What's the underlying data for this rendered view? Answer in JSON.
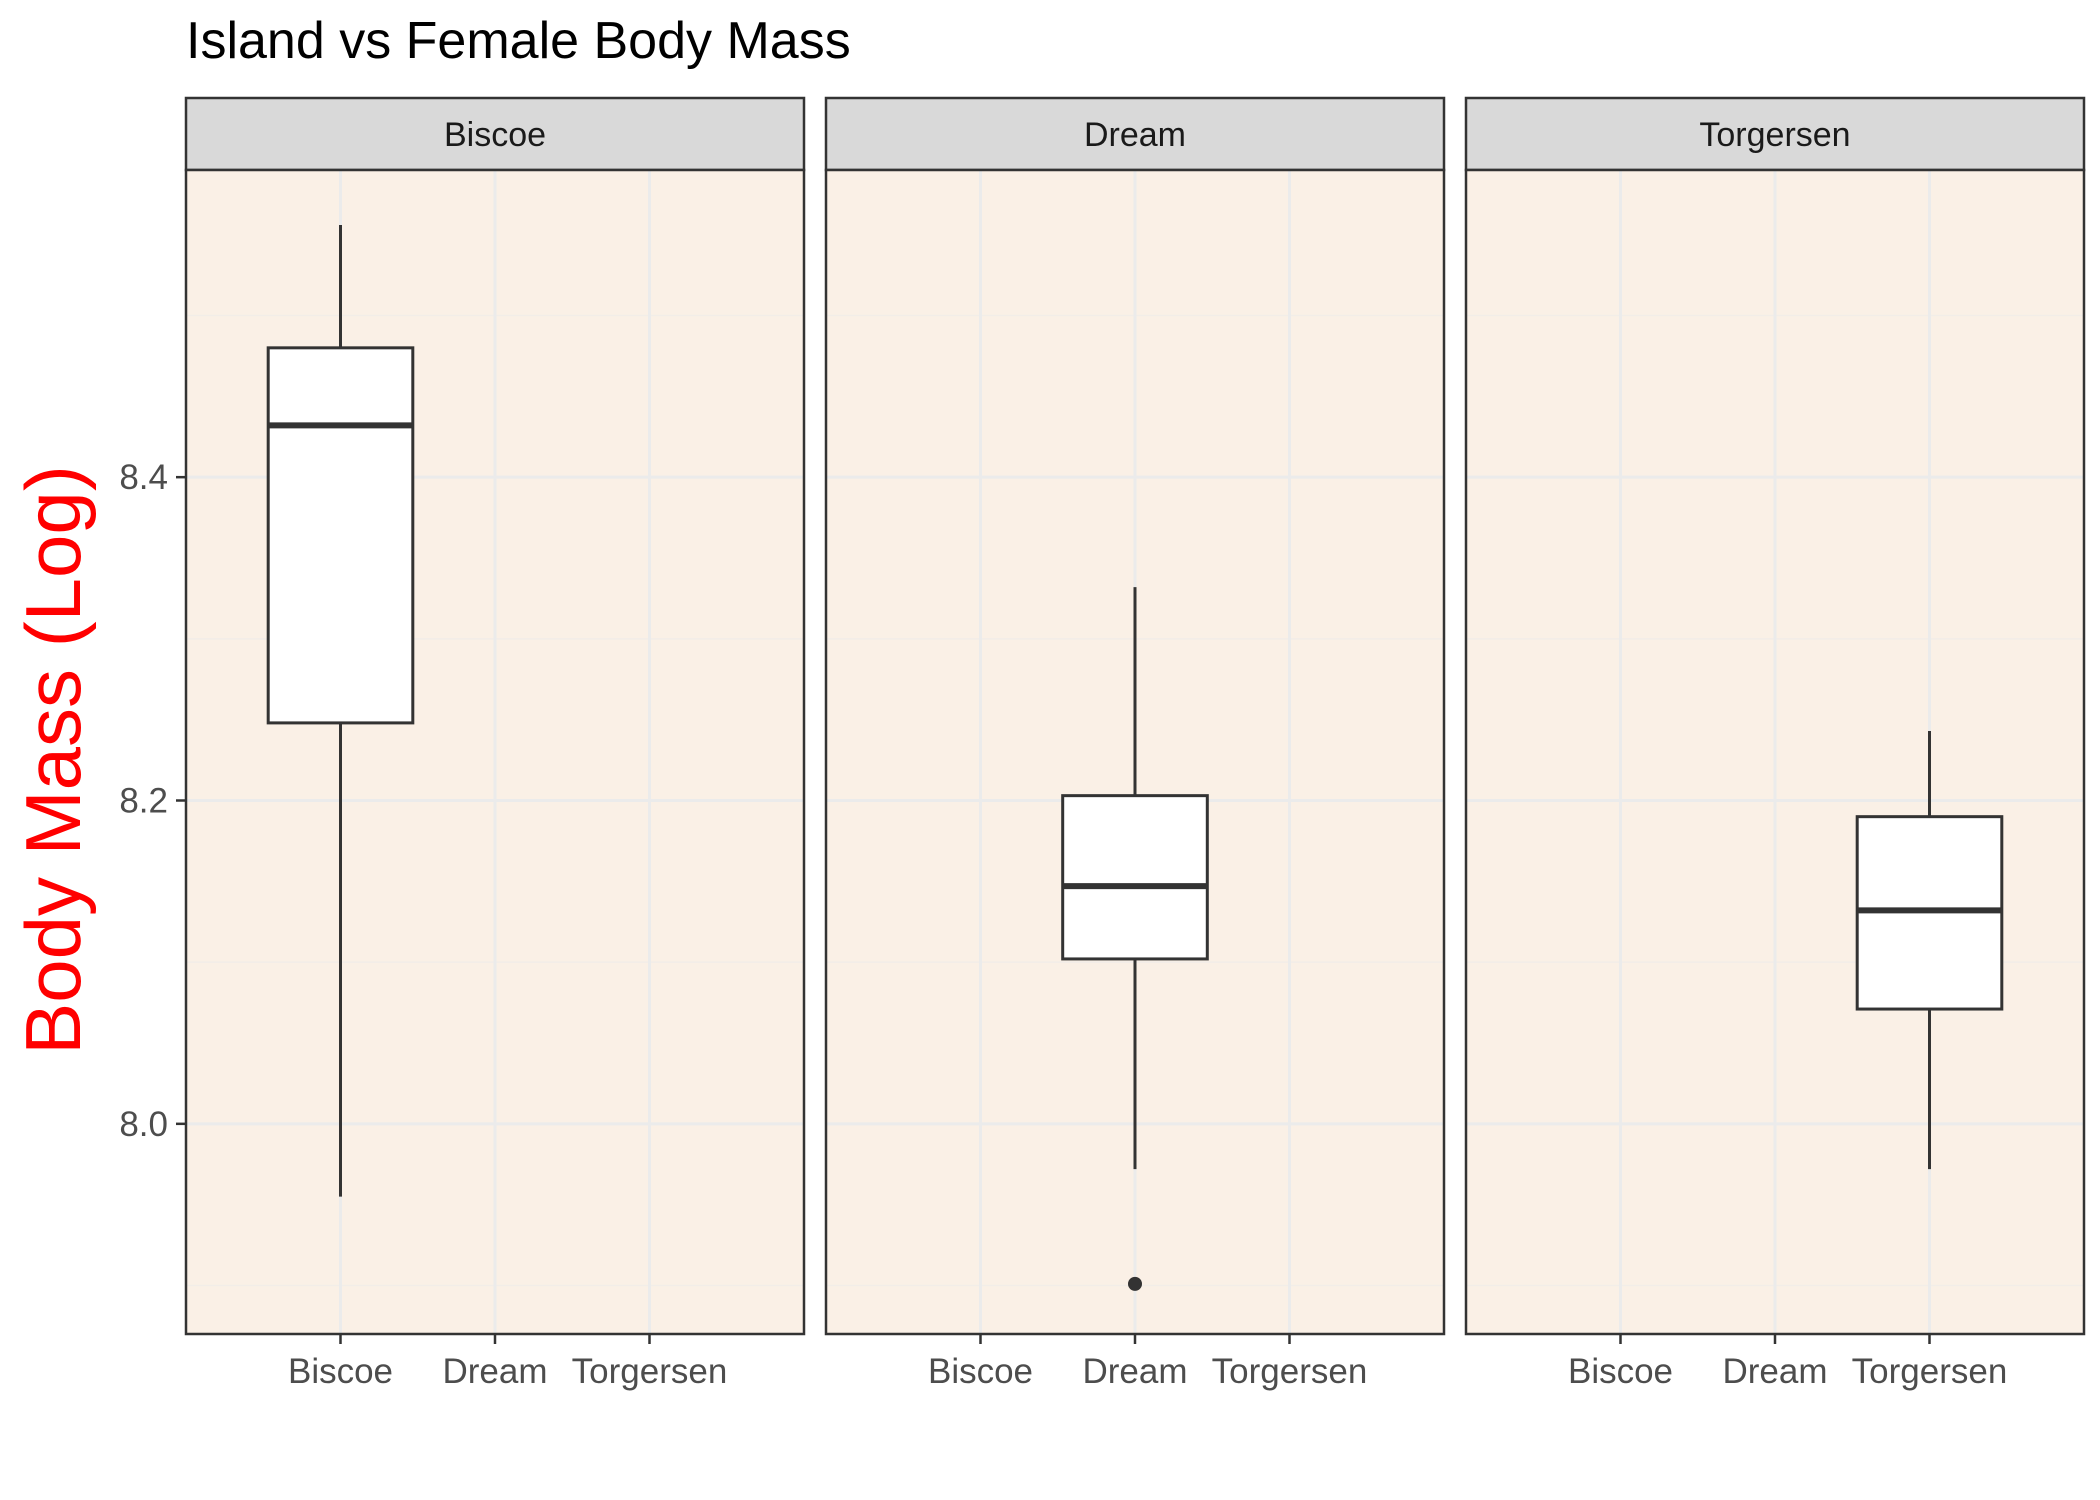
{
  "chart_data": {
    "type": "boxplot",
    "title": "Island vs Female Body Mass",
    "xlabel": "",
    "ylabel": "Body Mass (Log)",
    "ylabel_color": "#ff0000",
    "panel_background": "#faf0e6",
    "strip_background": "#d9d9d9",
    "grid": true,
    "ylim": [
      7.87,
      8.59
    ],
    "yticks": [
      8.0,
      8.2,
      8.4
    ],
    "ytick_labels": [
      "8.0",
      "8.2",
      "8.4"
    ],
    "categories": [
      "Biscoe",
      "Dream",
      "Torgersen"
    ],
    "facets": [
      {
        "name": "Biscoe",
        "box": {
          "category": "Biscoe",
          "whisker_low": 7.955,
          "q1": 8.248,
          "median": 8.432,
          "q3": 8.48,
          "whisker_high": 8.556,
          "outliers": []
        }
      },
      {
        "name": "Dream",
        "box": {
          "category": "Dream",
          "whisker_low": 7.972,
          "q1": 8.102,
          "median": 8.147,
          "q3": 8.203,
          "whisker_high": 8.332,
          "outliers": [
            7.901
          ]
        }
      },
      {
        "name": "Torgersen",
        "box": {
          "category": "Torgersen",
          "whisker_low": 7.972,
          "q1": 8.071,
          "median": 8.132,
          "q3": 8.19,
          "whisker_high": 8.243,
          "outliers": []
        }
      }
    ]
  }
}
